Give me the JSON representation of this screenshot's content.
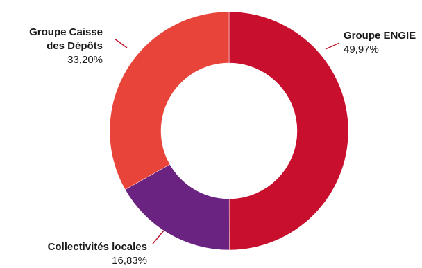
{
  "chart_data": {
    "type": "pie",
    "donut": true,
    "slices": [
      {
        "label": "Groupe ENGIE",
        "value": 49.97,
        "value_text": "49,97%",
        "color": "#c8102e"
      },
      {
        "label": "Collectivités locales",
        "value": 16.83,
        "value_text": "16,83%",
        "color": "#6b2382"
      },
      {
        "label": "Groupe Caisse des Dépôts",
        "value": 33.2,
        "value_text": "33,20%",
        "color": "#e8443a"
      }
    ],
    "legend": "none",
    "start_angle": "12 o'clock",
    "direction": "clockwise"
  },
  "labels": {
    "engie": {
      "line1": "Groupe ENGIE",
      "value": "49,97%"
    },
    "caisse": {
      "line1": "Groupe Caisse",
      "line2": "des Dépôts",
      "value": "33,20%"
    },
    "collectivites": {
      "line1": "Collectivités locales",
      "value": "16,83%"
    }
  }
}
